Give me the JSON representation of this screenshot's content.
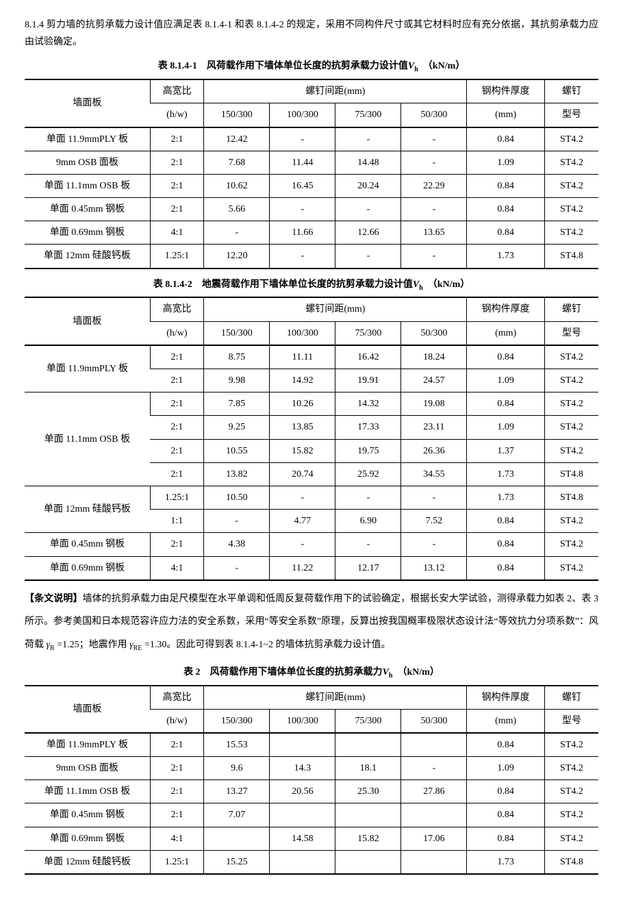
{
  "intro": {
    "text": "8.1.4 剪力墙的抗剪承载力设计值应满足表 8.1.4-1 和表 8.1.4-2 的规定，采用不同构件尺寸或其它材料时应有充分依据，其抗剪承载力应由试验确定。"
  },
  "table1": {
    "caption_prefix": "表 8.1.4-1　风荷载作用下墙体单位长度的抗剪承载力设计值",
    "caption_suffix": "　（kN/m）",
    "headers": {
      "panel": "墙面板",
      "ratio_top": "高宽比",
      "ratio_bot": "(h/w)",
      "spacing": "螺钉间距(mm)",
      "s1": "150/300",
      "s2": "100/300",
      "s3": "75/300",
      "s4": "50/300",
      "thk_top": "钢构件厚度",
      "thk_bot": "(mm)",
      "screw_top": "螺钉",
      "screw_bot": "型号"
    },
    "rows": [
      {
        "panel": "单面 11.9mmPLY 板",
        "ratio": "2:1",
        "s1": "12.42",
        "s2": "-",
        "s3": "-",
        "s4": "-",
        "thk": "0.84",
        "screw": "ST4.2"
      },
      {
        "panel": "9mm OSB 面板",
        "ratio": "2:1",
        "s1": "7.68",
        "s2": "11.44",
        "s3": "14.48",
        "s4": "-",
        "thk": "1.09",
        "screw": "ST4.2"
      },
      {
        "panel": "单面 11.1mm OSB 板",
        "ratio": "2:1",
        "s1": "10.62",
        "s2": "16.45",
        "s3": "20.24",
        "s4": "22.29",
        "thk": "0.84",
        "screw": "ST4.2"
      },
      {
        "panel": "单面 0.45mm 钢板",
        "ratio": "2:1",
        "s1": "5.66",
        "s2": "-",
        "s3": "-",
        "s4": "-",
        "thk": "0.84",
        "screw": "ST4.2"
      },
      {
        "panel": "单面 0.69mm 钢板",
        "ratio": "4:1",
        "s1": "-",
        "s2": "11.66",
        "s3": "12.66",
        "s4": "13.65",
        "thk": "0.84",
        "screw": "ST4.2"
      },
      {
        "panel": "单面 12mm 硅酸钙板",
        "ratio": "1.25:1",
        "s1": "12.20",
        "s2": "-",
        "s3": "-",
        "s4": "-",
        "thk": "1.73",
        "screw": "ST4.8"
      }
    ]
  },
  "table2": {
    "caption_prefix": "表 8.1.4-2　地震荷载作用下墙体单位长度的抗剪承载力设计值",
    "caption_suffix": "　（kN/m）",
    "rows": [
      {
        "panel": "单面 11.9mmPLY 板",
        "span": 2,
        "ratio": "2:1",
        "s1": "8.75",
        "s2": "11.11",
        "s3": "16.42",
        "s4": "18.24",
        "thk": "0.84",
        "screw": "ST4.2"
      },
      {
        "panel": "",
        "ratio": "2:1",
        "s1": "9.98",
        "s2": "14.92",
        "s3": "19.91",
        "s4": "24.57",
        "thk": "1.09",
        "screw": "ST4.2"
      },
      {
        "panel": "单面 11.1mm OSB 板",
        "span": 4,
        "ratio": "2:1",
        "s1": "7.85",
        "s2": "10.26",
        "s3": "14.32",
        "s4": "19.08",
        "thk": "0.84",
        "screw": "ST4.2"
      },
      {
        "panel": "",
        "ratio": "2:1",
        "s1": "9.25",
        "s2": "13.85",
        "s3": "17.33",
        "s4": "23.11",
        "thk": "1.09",
        "screw": "ST4.2"
      },
      {
        "panel": "",
        "ratio": "2:1",
        "s1": "10.55",
        "s2": "15.82",
        "s3": "19.75",
        "s4": "26.36",
        "thk": "1.37",
        "screw": "ST4.2"
      },
      {
        "panel": "",
        "ratio": "2:1",
        "s1": "13.82",
        "s2": "20.74",
        "s3": "25.92",
        "s4": "34.55",
        "thk": "1.73",
        "screw": "ST4.8"
      },
      {
        "panel": "单面 12mm 硅酸钙板",
        "span": 2,
        "ratio": "1.25:1",
        "s1": "10.50",
        "s2": "-",
        "s3": "-",
        "s4": "-",
        "thk": "1.73",
        "screw": "ST4.8"
      },
      {
        "panel": "",
        "ratio": "1:1",
        "s1": "-",
        "s2": "4.77",
        "s3": "6.90",
        "s4": "7.52",
        "thk": "0.84",
        "screw": "ST4.2"
      },
      {
        "panel": "单面 0.45mm 钢板",
        "span": 1,
        "ratio": "2:1",
        "s1": "4.38",
        "s2": "-",
        "s3": "-",
        "s4": "-",
        "thk": "0.84",
        "screw": "ST4.2"
      },
      {
        "panel": "单面 0.69mm 钢板",
        "span": 1,
        "ratio": "4:1",
        "s1": "-",
        "s2": "11.22",
        "s3": "12.17",
        "s4": "13.12",
        "thk": "0.84",
        "screw": "ST4.2"
      }
    ]
  },
  "explanation": {
    "label": "【条文说明】",
    "p1a": "墙体的抗剪承载力由足尺模型在水平单调和低周反复荷载作用下的试验确定，根据长安大学试验，测得承载力如表 2、表 3 所示。参考美国和日本规范容许应力法的安全系数，采用“等安全系数”原理，反算出按我国概率极限状态设计法“等效抗力分项系数”：风荷载 ",
    "gammaR": "γ",
    "subR": "R",
    "valR": " =1.25；地震作用 ",
    "gammaRE": "γ",
    "subRE": "RE",
    "valRE": " =1.30。因此可得到表 8.1.4-1~2 的墙体抗剪承载力设计值。"
  },
  "table3": {
    "caption_prefix": "表 2　风荷载作用下墙体单位长度的抗剪承载力",
    "caption_suffix": "　（kN/m）",
    "rows": [
      {
        "panel": "单面 11.9mmPLY 板",
        "ratio": "2:1",
        "s1": "15.53",
        "s2": "",
        "s3": "",
        "s4": "",
        "thk": "0.84",
        "screw": "ST4.2"
      },
      {
        "panel": "9mm OSB 面板",
        "ratio": "2:1",
        "s1": "9.6",
        "s2": "14.3",
        "s3": "18.1",
        "s4": "-",
        "thk": "1.09",
        "screw": "ST4.2"
      },
      {
        "panel": "单面 11.1mm OSB 板",
        "ratio": "2:1",
        "s1": "13.27",
        "s2": "20.56",
        "s3": "25.30",
        "s4": "27.86",
        "thk": "0.84",
        "screw": "ST4.2"
      },
      {
        "panel": "单面 0.45mm 钢板",
        "ratio": "2:1",
        "s1": "7.07",
        "s2": "",
        "s3": "",
        "s4": "",
        "thk": "0.84",
        "screw": "ST4.2"
      },
      {
        "panel": "单面 0.69mm 钢板",
        "ratio": "4:1",
        "s1": "",
        "s2": "14.58",
        "s3": "15.82",
        "s4": "17.06",
        "thk": "0.84",
        "screw": "ST4.2"
      },
      {
        "panel": "单面 12mm 硅酸钙板",
        "ratio": "1.25:1",
        "s1": "15.25",
        "s2": "",
        "s3": "",
        "s4": "",
        "thk": "1.73",
        "screw": "ST4.8"
      }
    ]
  },
  "symbol": {
    "V": "V",
    "h": "h"
  }
}
